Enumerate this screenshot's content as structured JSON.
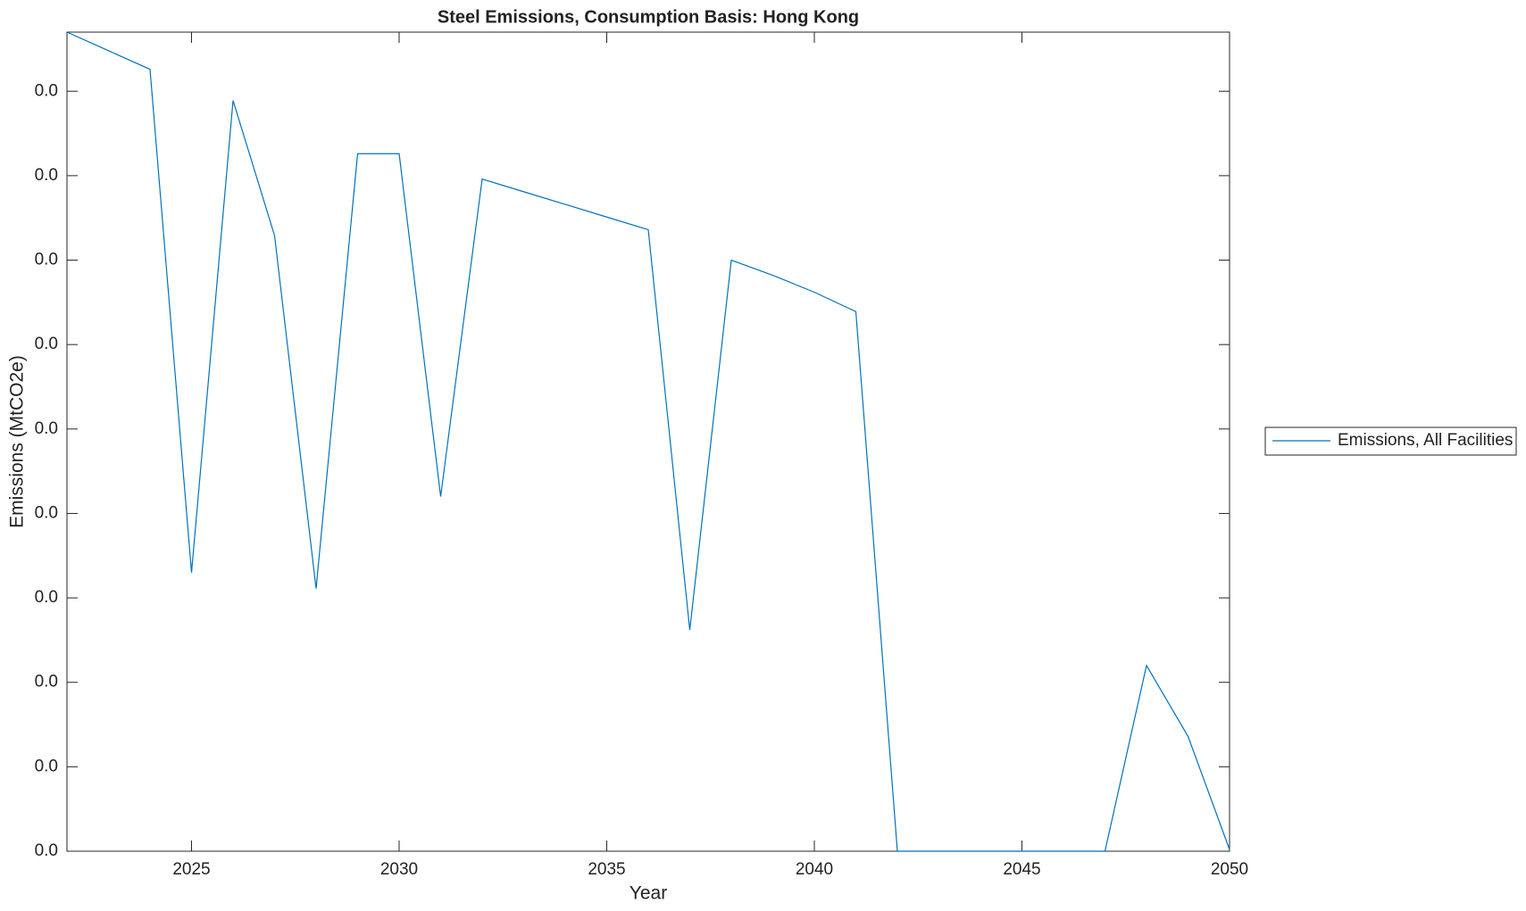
{
  "chart_data": {
    "type": "line",
    "title": "Steel Emissions, Consumption Basis: Hong Kong",
    "x_label": "Year",
    "y_label": "Emissions (MtCO2e)",
    "x": [
      2022,
      2023,
      2024,
      2025,
      2026,
      2027,
      2028,
      2029,
      2030,
      2031,
      2032,
      2033,
      2034,
      2035,
      2036,
      2037,
      2038,
      2039,
      2040,
      2041,
      2042,
      2043,
      2044,
      2045,
      2046,
      2047,
      2048,
      2049,
      2050
    ],
    "series": [
      {
        "name": "Emissions, All Facilities",
        "color": "#0072bd",
        "values": [
          0.0097,
          0.00948,
          0.00926,
          0.0033,
          0.00889,
          0.00729,
          0.00311,
          0.00826,
          0.00826,
          0.0042,
          0.00796,
          0.00781,
          0.00766,
          0.00751,
          0.00736,
          0.00262,
          0.007,
          0.00682,
          0.00662,
          0.00639,
          0,
          0,
          0,
          0,
          0,
          0,
          0.0022,
          0.00136,
          2e-05
        ]
      }
    ],
    "xlim": [
      2022,
      2050
    ],
    "xticks": [
      2025,
      2030,
      2035,
      2040,
      2045,
      2050
    ],
    "ylim": [
      0,
      0.0097
    ],
    "yticks": [
      {
        "value": 0,
        "label": "0.0"
      },
      {
        "value": 0.001,
        "label": "0.0"
      },
      {
        "value": 0.002,
        "label": "0.0"
      },
      {
        "value": 0.003,
        "label": "0.0"
      },
      {
        "value": 0.004,
        "label": "0.0"
      },
      {
        "value": 0.005,
        "label": "0.0"
      },
      {
        "value": 0.006,
        "label": "0.0"
      },
      {
        "value": 0.007,
        "label": "0.0"
      },
      {
        "value": 0.008,
        "label": "0.0"
      },
      {
        "value": 0.009,
        "label": "0.0"
      }
    ],
    "legend": "right",
    "grid": false
  }
}
